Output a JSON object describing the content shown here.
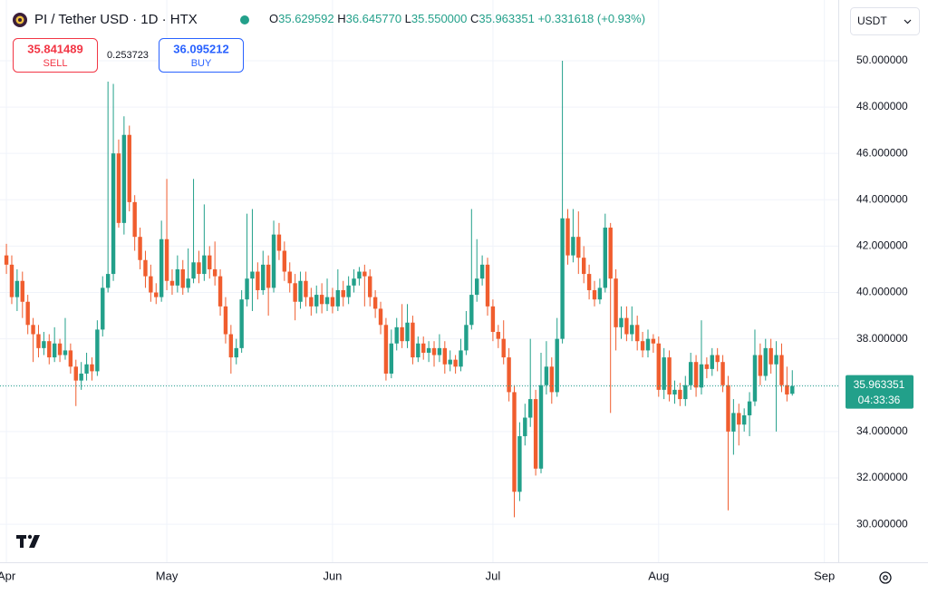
{
  "chart_data": {
    "type": "candlestick",
    "title": "PI / Tether USD · 1D · HTX",
    "legend": {
      "labels": [
        "O",
        "H",
        "L",
        "C"
      ],
      "change": "+0.331618",
      "change_pct": "(+0.93%)"
    },
    "ohlc_value_labels": [
      "35.629592",
      "36.645770",
      "35.550000",
      "35.963351"
    ],
    "sell": {
      "price": "35.841489",
      "label": "SELL"
    },
    "spread": "0.253723",
    "buy": {
      "price": "36.095212",
      "label": "BUY"
    },
    "currency": "USDT",
    "countdown": "04:33:36",
    "up_color": "#22a08a",
    "down_color": "#f05d2e",
    "grid": true,
    "xlim": [
      -1.2,
      155.6
    ],
    "xticks": [
      {
        "value": 0,
        "label": "Apr"
      },
      {
        "value": 30,
        "label": "May"
      },
      {
        "value": 61,
        "label": "Jun"
      },
      {
        "value": 91,
        "label": "Jul"
      },
      {
        "value": 122,
        "label": "Aug"
      },
      {
        "value": 153,
        "label": "Sep"
      }
    ],
    "ylim": [
      28.36,
      52.62
    ],
    "yticks": [
      {
        "value": 30,
        "label": "30.000000"
      },
      {
        "value": 32,
        "label": "32.000000"
      },
      {
        "value": 34,
        "label": "34.000000"
      },
      {
        "value": 36,
        "label": "36.000000"
      },
      {
        "value": 38,
        "label": "38.000000"
      },
      {
        "value": 40,
        "label": "40.000000"
      },
      {
        "value": 42,
        "label": "42.000000"
      },
      {
        "value": 44,
        "label": "44.000000"
      },
      {
        "value": 46,
        "label": "46.000000"
      },
      {
        "value": 48,
        "label": "48.000000"
      },
      {
        "value": 50,
        "label": "50.000000"
      }
    ],
    "open": [
      41.6,
      41.2,
      39.8,
      40.5,
      39.6,
      38.6,
      38.2,
      37.6,
      37.9,
      37.2,
      37.8,
      37.3,
      37.5,
      36.8,
      36.2,
      36.5,
      36.9,
      36.6,
      38.4,
      40.2,
      40.8,
      46.0,
      43.0,
      46.8,
      43.9,
      42.4,
      41.4,
      40.7,
      40.0,
      39.8,
      42.3,
      40.5,
      40.3,
      41.0,
      40.2,
      40.6,
      41.3,
      40.8,
      41.6,
      41.0,
      40.7,
      39.4,
      38.2,
      37.2,
      37.6,
      39.7,
      40.6,
      40.9,
      40.1,
      41.2,
      40.2,
      42.5,
      41.8,
      40.9,
      40.4,
      39.6,
      40.5,
      39.8,
      39.4,
      39.9,
      39.5,
      39.8,
      39.4,
      40.1,
      39.8,
      40.3,
      40.6,
      40.9,
      40.7,
      39.8,
      39.3,
      38.6,
      36.5,
      37.8,
      38.5,
      37.9,
      38.7,
      37.2,
      37.8,
      37.4,
      37.6,
      37.3,
      37.6,
      36.9,
      37.1,
      36.8,
      37.5,
      38.6,
      39.9,
      40.6,
      41.2,
      39.4,
      38.3,
      38.0,
      37.2,
      35.7,
      31.4,
      33.8,
      34.6,
      35.4,
      32.4,
      36.0,
      36.8,
      35.7,
      38.0,
      43.2,
      41.6,
      42.4,
      41.5,
      40.8,
      40.1,
      39.7,
      40.2,
      42.8,
      40.6,
      38.5,
      38.9,
      38.2,
      38.6,
      37.9,
      37.5,
      38.0,
      37.8,
      35.8,
      37.2,
      35.6,
      35.8,
      35.4,
      36.0,
      37.0,
      35.9,
      36.9,
      36.7,
      37.3,
      37.0,
      36.0,
      34.0,
      34.8,
      34.3,
      34.7,
      35.3,
      37.3,
      36.4,
      37.6,
      36.9,
      37.3,
      36.0,
      35.629592
    ],
    "high": [
      42.1,
      41.6,
      41.0,
      40.9,
      39.9,
      38.9,
      38.6,
      38.3,
      38.2,
      38.5,
      38.0,
      38.9,
      37.8,
      37.1,
      37.0,
      37.4,
      37.2,
      38.8,
      40.7,
      49.1,
      49.0,
      46.6,
      47.6,
      47.2,
      44.2,
      42.8,
      41.8,
      41.2,
      40.4,
      43.1,
      44.9,
      41.0,
      41.6,
      41.4,
      41.9,
      44.9,
      41.8,
      43.8,
      42.0,
      42.2,
      41.0,
      39.8,
      38.6,
      38.0,
      40.1,
      43.4,
      43.6,
      41.3,
      41.8,
      41.6,
      43.1,
      43.0,
      42.2,
      41.3,
      40.8,
      40.9,
      40.9,
      40.2,
      40.3,
      40.4,
      40.6,
      40.2,
      41.0,
      40.5,
      40.7,
      41.0,
      41.1,
      41.2,
      41.0,
      40.1,
      39.6,
      38.9,
      38.4,
      38.9,
      39.5,
      39.5,
      39.0,
      38.1,
      38.1,
      37.9,
      37.9,
      38.2,
      37.9,
      37.5,
      37.3,
      38.0,
      39.2,
      43.6,
      42.3,
      41.6,
      41.5,
      39.7,
      38.6,
      38.8,
      37.6,
      36.0,
      34.4,
      35.2,
      38.0,
      35.8,
      37.4,
      37.9,
      37.2,
      38.9,
      50.0,
      43.6,
      43.6,
      43.5,
      42.0,
      41.2,
      40.5,
      40.6,
      43.4,
      43.0,
      41.0,
      39.4,
      39.4,
      39.4,
      39.0,
      38.3,
      38.4,
      38.2,
      38.1,
      37.6,
      37.5,
      36.2,
      36.1,
      36.4,
      37.4,
      37.3,
      38.8,
      37.2,
      37.6,
      37.6,
      37.3,
      36.4,
      35.4,
      35.2,
      35.0,
      35.7,
      38.4,
      37.8,
      38.0,
      38.0,
      37.9,
      37.8,
      36.8,
      36.64577
    ],
    "low": [
      40.8,
      39.5,
      39.2,
      38.9,
      38.2,
      37.0,
      37.2,
      37.3,
      36.9,
      37.0,
      37.0,
      37.1,
      36.5,
      35.1,
      35.8,
      36.2,
      36.2,
      36.4,
      38.1,
      40.0,
      40.5,
      42.8,
      42.5,
      43.5,
      41.8,
      41.0,
      40.2,
      39.6,
      39.5,
      39.6,
      40.1,
      39.9,
      40.0,
      39.9,
      40.0,
      40.4,
      40.4,
      40.5,
      40.6,
      40.3,
      39.0,
      37.8,
      36.5,
      36.9,
      37.4,
      39.4,
      39.2,
      39.7,
      39.9,
      39.0,
      40.0,
      41.4,
      40.5,
      40.0,
      38.8,
      39.3,
      39.4,
      39.0,
      39.1,
      39.1,
      39.2,
      39.1,
      39.2,
      39.4,
      39.5,
      40.0,
      40.3,
      39.4,
      39.4,
      38.9,
      38.2,
      36.2,
      36.3,
      37.5,
      37.6,
      37.6,
      36.9,
      37.0,
      37.1,
      37.0,
      36.8,
      37.0,
      36.5,
      36.6,
      36.5,
      36.6,
      37.3,
      38.4,
      39.6,
      40.3,
      39.0,
      37.9,
      37.6,
      36.9,
      35.3,
      30.3,
      31.0,
      33.4,
      34.2,
      32.1,
      32.2,
      35.6,
      35.2,
      35.5,
      37.8,
      41.2,
      41.3,
      40.8,
      40.4,
      39.7,
      39.4,
      39.5,
      40.0,
      34.8,
      37.5,
      38.0,
      37.9,
      37.9,
      37.5,
      37.2,
      37.2,
      37.4,
      35.5,
      35.4,
      35.3,
      35.2,
      35.1,
      35.1,
      35.8,
      35.5,
      35.6,
      36.3,
      36.4,
      36.6,
      35.7,
      30.6,
      33.0,
      33.4,
      34.0,
      33.8,
      35.1,
      36.0,
      36.2,
      36.5,
      34.0,
      35.7,
      35.3,
      35.55
    ],
    "close": [
      41.2,
      39.8,
      40.5,
      39.6,
      38.6,
      38.2,
      37.6,
      37.9,
      37.2,
      37.8,
      37.3,
      37.5,
      36.8,
      36.2,
      36.5,
      36.9,
      36.6,
      38.4,
      40.2,
      40.8,
      46.0,
      43.0,
      46.8,
      43.9,
      42.4,
      41.4,
      40.7,
      40.0,
      39.8,
      42.3,
      40.5,
      40.3,
      41.0,
      40.2,
      40.6,
      41.3,
      40.8,
      41.6,
      41.0,
      40.7,
      39.4,
      38.2,
      37.2,
      37.6,
      39.7,
      40.6,
      40.9,
      40.1,
      41.2,
      40.2,
      42.5,
      41.8,
      40.9,
      40.4,
      39.6,
      40.5,
      39.8,
      39.4,
      39.9,
      39.5,
      39.8,
      39.4,
      40.1,
      39.8,
      40.3,
      40.6,
      40.9,
      40.7,
      39.8,
      39.3,
      38.6,
      36.5,
      37.8,
      38.5,
      37.9,
      38.7,
      37.2,
      37.8,
      37.4,
      37.6,
      37.3,
      37.6,
      36.9,
      37.1,
      36.8,
      37.5,
      38.6,
      39.9,
      40.6,
      41.2,
      39.4,
      38.3,
      38.0,
      37.2,
      35.7,
      31.4,
      33.8,
      34.6,
      35.4,
      32.4,
      36.0,
      36.8,
      35.7,
      38.0,
      43.2,
      41.6,
      42.4,
      41.5,
      40.8,
      40.1,
      39.7,
      40.2,
      42.8,
      40.6,
      38.5,
      38.9,
      38.2,
      38.6,
      37.9,
      37.5,
      38.0,
      37.8,
      35.8,
      37.2,
      35.6,
      35.8,
      35.4,
      36.0,
      37.0,
      35.9,
      36.9,
      36.7,
      37.3,
      37.0,
      36.0,
      34.0,
      34.8,
      34.3,
      34.7,
      35.3,
      37.3,
      36.4,
      37.6,
      36.9,
      37.3,
      36.0,
      35.6,
      35.963351
    ]
  }
}
